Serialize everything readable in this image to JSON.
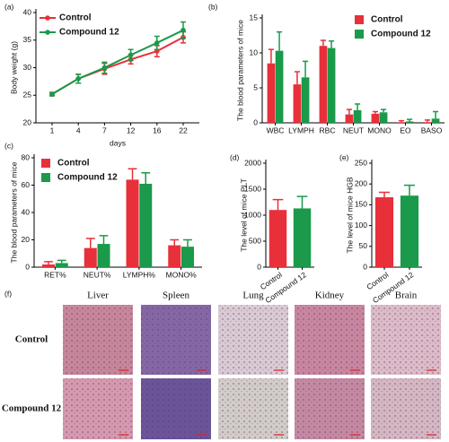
{
  "chart_data": [
    {
      "type": "line",
      "label": "(a)",
      "ylabel": "Body weight (g)",
      "xlabel": "days",
      "categories": [
        "1",
        "4",
        "7",
        "12",
        "16",
        "22"
      ],
      "ylim": [
        20,
        40
      ],
      "yticks": [
        20,
        25,
        30,
        35,
        40
      ],
      "legend": "upper left",
      "series": [
        {
          "name": "Control",
          "color": "#e8303a",
          "values": [
            25.2,
            28,
            29.8,
            31.5,
            33,
            35.5
          ],
          "errors": [
            0.3,
            0.8,
            1,
            0.8,
            1,
            1
          ]
        },
        {
          "name": "Compound 12",
          "color": "#1a9a4a",
          "values": [
            25.2,
            28,
            30,
            32.3,
            34.5,
            36.8
          ],
          "errors": [
            0.3,
            0.8,
            1,
            1,
            1.2,
            1.5
          ]
        }
      ]
    },
    {
      "type": "bar",
      "label": "(b)",
      "ylabel": "The blood parameters of mice",
      "categories": [
        "WBC",
        "LYMPH",
        "RBC",
        "NEUT",
        "MONO",
        "EO",
        "BASO"
      ],
      "ylim": [
        0,
        15
      ],
      "yticks": [
        0,
        5,
        10,
        15
      ],
      "legend": "upper right",
      "series": [
        {
          "name": "Control",
          "color": "#e8303a",
          "values": [
            8.5,
            5.5,
            11,
            1.2,
            1.3,
            0.1,
            0.1
          ],
          "errors": [
            2,
            1.8,
            0.8,
            0.7,
            0.3,
            0.2,
            0.3
          ]
        },
        {
          "name": "Compound 12",
          "color": "#1a9a4a",
          "values": [
            10.3,
            6.5,
            10.7,
            1.8,
            1.5,
            0.2,
            0.6
          ],
          "errors": [
            2.7,
            2.3,
            1,
            0.9,
            0.4,
            0.3,
            1
          ]
        }
      ]
    },
    {
      "type": "bar",
      "label": "(c)",
      "ylabel": "The blood parameters of mice",
      "categories": [
        "RET%",
        "NEUT%",
        "LYMPH%",
        "MONO%"
      ],
      "ylim": [
        0,
        80
      ],
      "yticks": [
        0,
        20,
        40,
        60,
        80
      ],
      "legend": "upper left",
      "series": [
        {
          "name": "Control",
          "color": "#e8303a",
          "values": [
            2,
            14,
            64,
            16
          ],
          "errors": [
            2,
            7,
            8,
            4
          ]
        },
        {
          "name": "Compound 12",
          "color": "#1a9a4a",
          "values": [
            3,
            17,
            61,
            15
          ],
          "errors": [
            2,
            6,
            8,
            5
          ]
        }
      ]
    },
    {
      "type": "bar",
      "label": "(d)",
      "ylabel": "The level of mice PLT",
      "categories": [
        "Control",
        "Compound 12"
      ],
      "colors": [
        "#e8303a",
        "#1a9a4a"
      ],
      "ylim": [
        0,
        2000
      ],
      "yticks": [
        0,
        500,
        1000,
        1500,
        2000
      ],
      "values": [
        1100,
        1130
      ],
      "errors": [
        200,
        230
      ]
    },
    {
      "type": "bar",
      "label": "(e)",
      "ylabel": "The level of mice HGB",
      "categories": [
        "Control",
        "Compound 12"
      ],
      "colors": [
        "#e8303a",
        "#1a9a4a"
      ],
      "ylim": [
        0,
        250
      ],
      "yticks": [
        0,
        50,
        100,
        150,
        200,
        250
      ],
      "values": [
        168,
        172
      ],
      "errors": [
        12,
        25
      ]
    }
  ],
  "histology": {
    "label": "(f)",
    "columns": [
      "Liver",
      "Spleen",
      "Lung",
      "Kidney",
      "Brain"
    ],
    "rows": [
      "Control",
      "Compound 12"
    ]
  }
}
